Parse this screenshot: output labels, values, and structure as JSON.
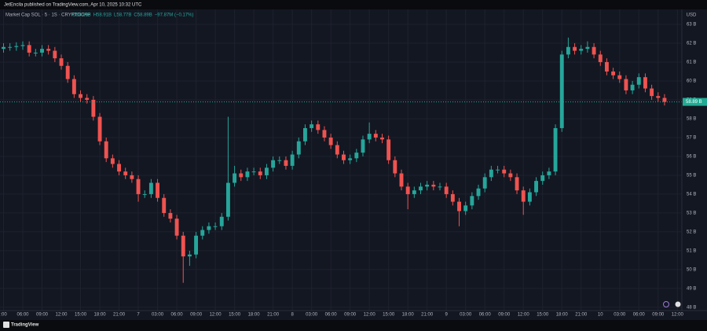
{
  "header": {
    "publisher": "JetEncila published on TradingView.com, Apr 10, 2025 10:32 UTC"
  },
  "footer": {
    "brand": "TradingView"
  },
  "chart_data": {
    "type": "candlestick",
    "symbol": "Market Cap SOL · 5 · 1S · CRYPTOCAP",
    "legend": [
      "O58.89B",
      "H58.91B",
      "L58.77B",
      "C58.89B",
      "−97.87M (−0.17%)"
    ],
    "currency": "USD",
    "up_color": "#26a69a",
    "down_color": "#ef5350",
    "grid": true,
    "last_price": {
      "value": 58.89,
      "label": "58.89 B",
      "color": "#22ab94"
    },
    "x": [
      3,
      4,
      5,
      6,
      7,
      8,
      9,
      10,
      11,
      12,
      13,
      14,
      15,
      16,
      17,
      18,
      19,
      20,
      21,
      22,
      23,
      24,
      25,
      26,
      27,
      28,
      29,
      30,
      31,
      32,
      33,
      34,
      35,
      36,
      37,
      38,
      39,
      40,
      41,
      42,
      43,
      44,
      45,
      46,
      47,
      48,
      49,
      50,
      51,
      52,
      53,
      54,
      55,
      56,
      57,
      58,
      59,
      60,
      61,
      62,
      63,
      64,
      65,
      66,
      67,
      68,
      69,
      70,
      71,
      72,
      73,
      74,
      75,
      76,
      77,
      78,
      79,
      80,
      81,
      82,
      83,
      84,
      85,
      86,
      87,
      88,
      89,
      90,
      91,
      92,
      93,
      94,
      95,
      96,
      97,
      98,
      99,
      100,
      101,
      102,
      103,
      104,
      105,
      106
    ],
    "open": [
      61.7,
      61.8,
      61.8,
      61.85,
      61.9,
      61.5,
      61.5,
      61.7,
      61.6,
      61.2,
      60.8,
      60.1,
      59.3,
      59.1,
      59.0,
      58.1,
      56.8,
      55.9,
      55.6,
      55.2,
      55.0,
      54.8,
      54.0,
      54.0,
      54.6,
      53.8,
      53.0,
      52.7,
      51.8,
      50.7,
      50.8,
      51.8,
      52.1,
      52.3,
      52.3,
      52.8,
      54.6,
      55.1,
      54.9,
      55.2,
      55.2,
      55.0,
      55.4,
      55.8,
      55.8,
      55.5,
      56.1,
      56.8,
      57.5,
      57.7,
      57.4,
      57.0,
      56.6,
      56.1,
      55.8,
      55.9,
      56.2,
      56.9,
      57.2,
      57.0,
      56.9,
      55.8,
      55.1,
      54.4,
      54.0,
      54.2,
      54.4,
      54.5,
      54.4,
      54.4,
      54.0,
      53.6,
      53.1,
      53.4,
      53.9,
      54.3,
      54.9,
      55.3,
      55.3,
      55.1,
      54.9,
      54.2,
      53.6,
      54.1,
      54.7,
      55.0,
      55.2,
      57.5,
      61.4,
      61.8,
      61.6,
      61.7,
      61.8,
      61.4,
      61.0,
      60.5,
      60.3,
      60.1,
      59.5,
      59.8,
      60.2,
      59.6,
      59.2,
      59.1
    ],
    "high": [
      62.0,
      62.0,
      62.05,
      62.1,
      62.1,
      61.7,
      61.9,
      61.9,
      61.8,
      61.4,
      61.0,
      60.3,
      59.5,
      59.3,
      59.2,
      58.3,
      57.0,
      56.1,
      55.8,
      55.4,
      55.2,
      55.0,
      54.2,
      54.8,
      54.8,
      54.0,
      53.2,
      52.9,
      52.0,
      51.0,
      52.0,
      52.3,
      52.5,
      52.5,
      53.0,
      58.1,
      55.5,
      55.3,
      55.4,
      55.4,
      55.4,
      55.6,
      56.0,
      56.0,
      56.0,
      56.3,
      57.0,
      57.7,
      57.9,
      57.9,
      57.6,
      57.2,
      56.8,
      56.3,
      56.1,
      56.4,
      57.1,
      57.8,
      57.4,
      57.2,
      57.1,
      56.0,
      55.3,
      54.6,
      54.4,
      54.6,
      54.7,
      54.7,
      54.6,
      54.6,
      54.2,
      53.8,
      53.6,
      54.1,
      54.5,
      55.1,
      55.5,
      55.5,
      55.5,
      55.3,
      55.1,
      54.4,
      54.3,
      54.9,
      55.2,
      55.4,
      57.7,
      61.6,
      62.3,
      62.0,
      61.9,
      62.1,
      62.0,
      61.6,
      61.2,
      60.7,
      60.5,
      60.3,
      60.0,
      60.4,
      60.4,
      59.8,
      59.4,
      59.3
    ],
    "low": [
      61.5,
      61.6,
      61.6,
      61.65,
      61.3,
      61.3,
      61.3,
      61.4,
      61.0,
      60.6,
      59.9,
      59.1,
      58.9,
      58.8,
      57.9,
      56.6,
      55.7,
      55.4,
      55.0,
      54.8,
      54.6,
      53.6,
      53.8,
      53.8,
      53.6,
      52.8,
      52.5,
      51.6,
      49.3,
      50.2,
      50.6,
      51.6,
      51.9,
      52.1,
      52.1,
      52.6,
      54.4,
      54.7,
      54.7,
      55.0,
      54.8,
      54.8,
      55.2,
      55.6,
      55.3,
      55.3,
      55.9,
      56.6,
      57.3,
      57.2,
      56.8,
      56.4,
      55.9,
      55.6,
      55.6,
      55.7,
      56.0,
      56.7,
      56.8,
      56.7,
      55.6,
      54.9,
      54.2,
      53.2,
      53.8,
      54.0,
      54.2,
      54.2,
      54.2,
      53.8,
      53.4,
      52.3,
      52.9,
      53.2,
      53.7,
      54.1,
      54.7,
      55.1,
      54.9,
      54.7,
      54.0,
      52.9,
      53.4,
      53.9,
      54.5,
      54.8,
      55.0,
      57.3,
      61.2,
      61.4,
      61.4,
      61.5,
      61.2,
      60.8,
      60.3,
      60.1,
      59.9,
      59.3,
      59.3,
      59.6,
      59.4,
      59.0,
      58.9,
      58.7
    ],
    "close": [
      61.8,
      61.8,
      61.85,
      61.9,
      61.5,
      61.5,
      61.7,
      61.6,
      61.2,
      60.8,
      60.1,
      59.3,
      59.1,
      59.0,
      58.1,
      56.8,
      55.9,
      55.6,
      55.2,
      55.0,
      54.8,
      54.0,
      54.0,
      54.6,
      53.8,
      53.0,
      52.7,
      51.8,
      50.7,
      50.8,
      51.8,
      52.1,
      52.3,
      52.3,
      52.8,
      54.6,
      55.1,
      54.9,
      55.2,
      55.2,
      55.0,
      55.4,
      55.8,
      55.8,
      55.5,
      56.1,
      56.8,
      57.5,
      57.7,
      57.4,
      57.0,
      56.6,
      56.1,
      55.8,
      55.9,
      56.2,
      56.9,
      57.2,
      57.0,
      56.9,
      55.8,
      55.1,
      54.4,
      54.0,
      54.2,
      54.4,
      54.5,
      54.4,
      54.4,
      54.0,
      53.6,
      53.1,
      53.4,
      53.9,
      54.3,
      54.9,
      55.3,
      55.3,
      55.1,
      54.9,
      54.2,
      53.6,
      54.1,
      54.7,
      55.0,
      55.2,
      57.5,
      61.4,
      61.8,
      61.6,
      61.7,
      61.8,
      61.4,
      61.0,
      60.5,
      60.3,
      60.1,
      59.5,
      59.8,
      60.2,
      59.6,
      59.2,
      59.1,
      58.89
    ],
    "xlim": [
      2.45,
      108.7
    ],
    "ylim": [
      47.83,
      63.79
    ],
    "xticks": [
      {
        "value": 3,
        "label": ":00"
      },
      {
        "value": 6,
        "label": "06:00"
      },
      {
        "value": 9,
        "label": "09:00"
      },
      {
        "value": 12,
        "label": "12:00"
      },
      {
        "value": 15,
        "label": "15:00"
      },
      {
        "value": 18,
        "label": "18:00"
      },
      {
        "value": 21,
        "label": "21:00"
      },
      {
        "value": 24,
        "label": "7"
      },
      {
        "value": 27,
        "label": "03:00"
      },
      {
        "value": 30,
        "label": "06:00"
      },
      {
        "value": 33,
        "label": "09:00"
      },
      {
        "value": 36,
        "label": "12:00"
      },
      {
        "value": 39,
        "label": "15:00"
      },
      {
        "value": 42,
        "label": "18:00"
      },
      {
        "value": 45,
        "label": "21:00"
      },
      {
        "value": 48,
        "label": "8"
      },
      {
        "value": 51,
        "label": "03:00"
      },
      {
        "value": 54,
        "label": "06:00"
      },
      {
        "value": 57,
        "label": "09:00"
      },
      {
        "value": 60,
        "label": "12:00"
      },
      {
        "value": 63,
        "label": "15:00"
      },
      {
        "value": 66,
        "label": "18:00"
      },
      {
        "value": 69,
        "label": "21:00"
      },
      {
        "value": 72,
        "label": "9"
      },
      {
        "value": 75,
        "label": "03:00"
      },
      {
        "value": 78,
        "label": "06:00"
      },
      {
        "value": 81,
        "label": "09:00"
      },
      {
        "value": 84,
        "label": "12:00"
      },
      {
        "value": 87,
        "label": "15:00"
      },
      {
        "value": 90,
        "label": "18:00"
      },
      {
        "value": 93,
        "label": "21:00"
      },
      {
        "value": 96,
        "label": "10"
      },
      {
        "value": 99,
        "label": "03:00"
      },
      {
        "value": 102,
        "label": "06:00"
      },
      {
        "value": 105,
        "label": "09:00"
      },
      {
        "value": 108,
        "label": "12:00"
      }
    ],
    "yticks": [
      {
        "value": 48,
        "label": "48 B"
      },
      {
        "value": 49,
        "label": "49 B"
      },
      {
        "value": 50,
        "label": "50 B"
      },
      {
        "value": 51,
        "label": "51 B"
      },
      {
        "value": 52,
        "label": "52 B"
      },
      {
        "value": 53,
        "label": "53 B"
      },
      {
        "value": 54,
        "label": "54 B"
      },
      {
        "value": 55,
        "label": "55 B"
      },
      {
        "value": 56,
        "label": "56 B"
      },
      {
        "value": 57,
        "label": "57 B"
      },
      {
        "value": 58,
        "label": "58 B"
      },
      {
        "value": 59,
        "label": "59 B"
      },
      {
        "value": 60,
        "label": "60 B"
      },
      {
        "value": 61,
        "label": "61 B"
      },
      {
        "value": 62,
        "label": "62 B"
      },
      {
        "value": 63,
        "label": "63 B"
      }
    ]
  }
}
